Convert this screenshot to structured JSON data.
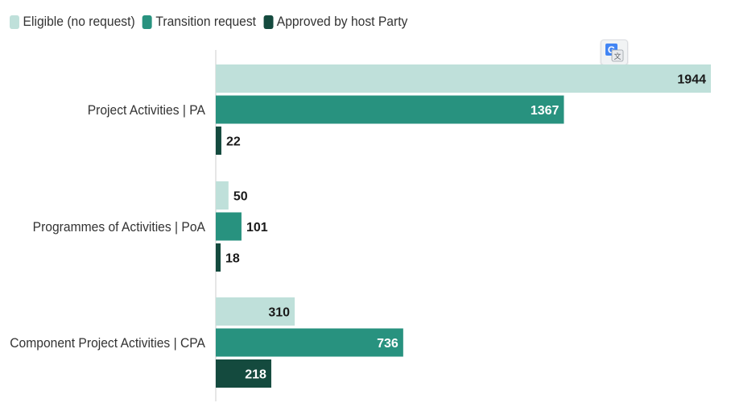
{
  "legend": {
    "items": [
      {
        "label": "Eligible (no request)",
        "color": "#bfe0da"
      },
      {
        "label": "Transition request",
        "color": "#28927f"
      },
      {
        "label": "Approved by host Party",
        "color": "#144a3e"
      }
    ]
  },
  "toolbar": {
    "translate_icon": "google-translate-icon"
  },
  "chart_data": {
    "type": "bar",
    "orientation": "horizontal",
    "categories": [
      "Project Activities | PA",
      "Programmes of Activities | PoA",
      "Component Project Activities | CPA"
    ],
    "series": [
      {
        "name": "Eligible (no request)",
        "color": "#bfe0da",
        "label_color": "#1a1a1a",
        "values": [
          1944,
          50,
          310
        ]
      },
      {
        "name": "Transition request",
        "color": "#28927f",
        "label_color": "#ffffff",
        "values": [
          1367,
          101,
          736
        ]
      },
      {
        "name": "Approved by host Party",
        "color": "#144a3e",
        "label_color": "#ffffff",
        "values": [
          22,
          18,
          218
        ]
      }
    ],
    "xlim": [
      0,
      1944
    ],
    "title": "",
    "xlabel": "",
    "ylabel": "",
    "grid": false,
    "legend_position": "top-left"
  }
}
